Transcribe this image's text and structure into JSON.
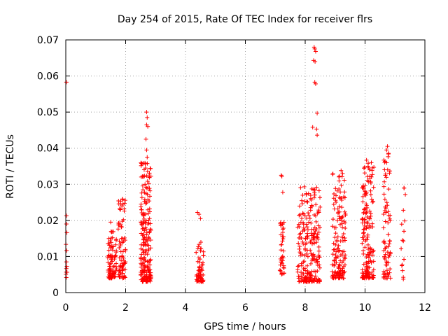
{
  "chart_data": {
    "type": "scatter",
    "title": "Day 254 of 2015, Rate Of TEC Index for receiver flrs",
    "xlabel": "GPS time / hours",
    "ylabel": "ROTI / TECUs",
    "xlim": [
      0,
      12
    ],
    "ylim": [
      0,
      0.07
    ],
    "xticks": [
      0,
      2,
      4,
      6,
      8,
      10,
      12
    ],
    "yticks": [
      0,
      0.01,
      0.02,
      0.03,
      0.04,
      0.05,
      0.06,
      0.07
    ],
    "xtick_labels": [
      "0",
      "2",
      "4",
      "6",
      "8",
      "10",
      "12"
    ],
    "ytick_labels": [
      "0",
      "0.01",
      "0.02",
      "0.03",
      "0.04",
      "0.05",
      "0.06",
      "0.07"
    ],
    "grid": true,
    "marker": "+",
    "color": "#ff0000",
    "clusters": [
      {
        "x_min": 0.0,
        "x_max": 0.05,
        "y_min": 0.004,
        "y_max": 0.021,
        "count": 10,
        "seed": 11
      },
      {
        "x_min": 1.4,
        "x_max": 1.7,
        "y_min": 0.004,
        "y_max": 0.018,
        "count": 90,
        "seed": 21
      },
      {
        "x_min": 1.75,
        "x_max": 2.0,
        "y_min": 0.004,
        "y_max": 0.026,
        "count": 80,
        "seed": 31
      },
      {
        "x_min": 2.5,
        "x_max": 2.85,
        "y_min": 0.003,
        "y_max": 0.036,
        "count": 220,
        "seed": 41
      },
      {
        "x_min": 4.35,
        "x_max": 4.6,
        "y_min": 0.003,
        "y_max": 0.014,
        "count": 60,
        "seed": 51
      },
      {
        "x_min": 7.15,
        "x_max": 7.3,
        "y_min": 0.005,
        "y_max": 0.021,
        "count": 40,
        "seed": 61
      },
      {
        "x_min": 7.75,
        "x_max": 8.5,
        "y_min": 0.003,
        "y_max": 0.03,
        "count": 240,
        "seed": 71
      },
      {
        "x_min": 8.9,
        "x_max": 9.35,
        "y_min": 0.004,
        "y_max": 0.033,
        "count": 150,
        "seed": 81
      },
      {
        "x_min": 9.9,
        "x_max": 10.3,
        "y_min": 0.004,
        "y_max": 0.036,
        "count": 170,
        "seed": 91
      },
      {
        "x_min": 10.6,
        "x_max": 10.85,
        "y_min": 0.004,
        "y_max": 0.04,
        "count": 80,
        "seed": 101
      },
      {
        "x_min": 11.2,
        "x_max": 11.35,
        "y_min": 0.004,
        "y_max": 0.029,
        "count": 10,
        "seed": 111
      }
    ],
    "points": [
      [
        0.02,
        0.0583
      ],
      [
        0.02,
        0.0213
      ],
      [
        0.02,
        0.019
      ],
      [
        1.5,
        0.0195
      ],
      [
        1.9,
        0.0258
      ],
      [
        1.95,
        0.0232
      ],
      [
        2.7,
        0.05
      ],
      [
        2.72,
        0.0485
      ],
      [
        2.7,
        0.0465
      ],
      [
        2.74,
        0.046
      ],
      [
        2.68,
        0.0425
      ],
      [
        2.7,
        0.0395
      ],
      [
        2.72,
        0.0375
      ],
      [
        4.4,
        0.0222
      ],
      [
        4.45,
        0.0217
      ],
      [
        4.5,
        0.0205
      ],
      [
        7.2,
        0.0325
      ],
      [
        7.22,
        0.0322
      ],
      [
        7.25,
        0.0278
      ],
      [
        8.3,
        0.068
      ],
      [
        8.32,
        0.0675
      ],
      [
        8.35,
        0.0668
      ],
      [
        8.28,
        0.0643
      ],
      [
        8.33,
        0.064
      ],
      [
        8.32,
        0.0583
      ],
      [
        8.35,
        0.0578
      ],
      [
        8.4,
        0.0497
      ],
      [
        8.25,
        0.0458
      ],
      [
        8.38,
        0.0453
      ],
      [
        8.4,
        0.0436
      ],
      [
        9.2,
        0.0338
      ],
      [
        9.25,
        0.033
      ],
      [
        10.05,
        0.0367
      ],
      [
        10.1,
        0.035
      ],
      [
        10.15,
        0.034
      ],
      [
        10.75,
        0.0405
      ],
      [
        10.72,
        0.0395
      ],
      [
        10.78,
        0.0384
      ],
      [
        11.3,
        0.029
      ],
      [
        11.28,
        0.0228
      ],
      [
        11.3,
        0.017
      ],
      [
        11.28,
        0.0143
      ],
      [
        11.3,
        0.0092
      ],
      [
        11.28,
        0.0037
      ]
    ]
  }
}
